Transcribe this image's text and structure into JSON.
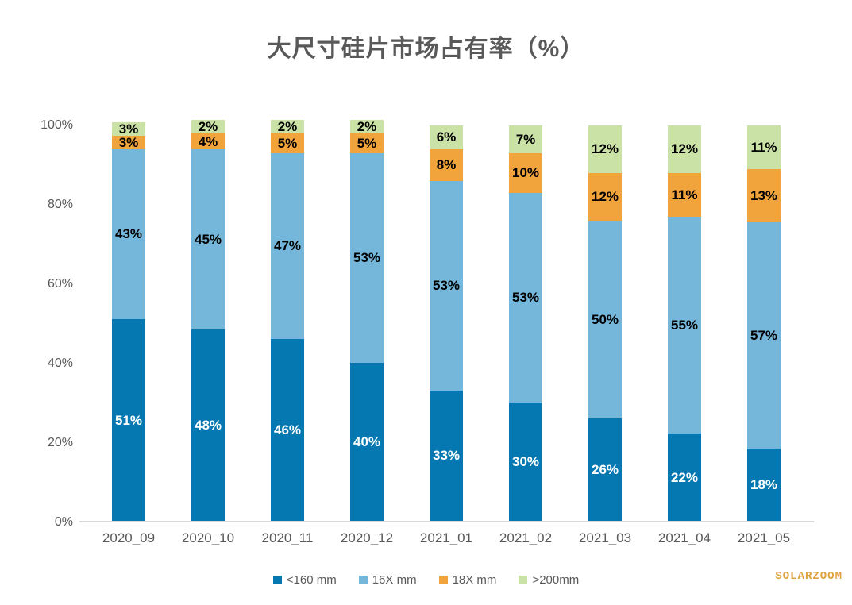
{
  "watermark": "SOLARZOOM",
  "chart_data": {
    "type": "bar",
    "variant": "stacked-100-percent-column",
    "title": "大尺寸硅片市场占有率（%）",
    "categories": [
      "2020_09",
      "2020_10",
      "2020_11",
      "2020_12",
      "2021_01",
      "2021_02",
      "2021_03",
      "2021_04",
      "2021_05"
    ],
    "series": [
      {
        "name": "<160 mm",
        "color": "#0578b1",
        "label_color": "#ffffff",
        "values": [
          51,
          48,
          46,
          40,
          33,
          30,
          26,
          22,
          18
        ],
        "labels": [
          "51%",
          "48%",
          "46%",
          "40%",
          "33%",
          "30%",
          "26%",
          "22%",
          "18%"
        ]
      },
      {
        "name": "16X mm",
        "color": "#74b7da",
        "label_color": "#000000",
        "values": [
          43,
          45,
          47,
          53,
          53,
          53,
          50,
          55,
          57
        ],
        "labels": [
          "43%",
          "45%",
          "47%",
          "53%",
          "53%",
          "53%",
          "50%",
          "55%",
          "57%"
        ]
      },
      {
        "name": "18X mm",
        "color": "#f1a33c",
        "label_color": "#000000",
        "values": [
          3,
          4,
          5,
          5,
          8,
          10,
          12,
          11,
          13
        ],
        "labels": [
          "3%",
          "4%",
          "5%",
          "5%",
          "8%",
          "10%",
          "12%",
          "11%",
          "13%"
        ]
      },
      {
        "name": ">200mm",
        "color": "#cbe2a7",
        "label_color": "#000000",
        "values": [
          3,
          2,
          2,
          2,
          6,
          7,
          12,
          12,
          11
        ],
        "labels": [
          "3%",
          "2%",
          "2%",
          "2%",
          "6%",
          "7%",
          "12%",
          "12%",
          "11%"
        ]
      }
    ],
    "y_ticks": [
      "0%",
      "20%",
      "40%",
      "60%",
      "80%",
      "100%"
    ],
    "ylim": [
      0,
      100
    ],
    "grid": false,
    "legend_position": "bottom",
    "axis_color": "#d9d9d9",
    "text_color": "#595959"
  }
}
